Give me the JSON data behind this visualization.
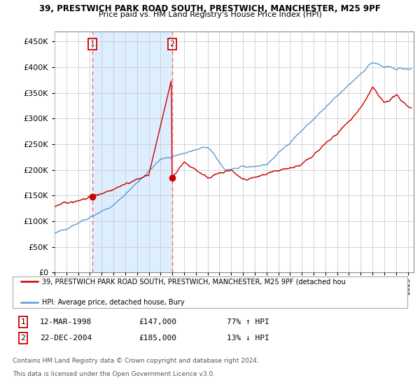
{
  "title1": "39, PRESTWICH PARK ROAD SOUTH, PRESTWICH, MANCHESTER, M25 9PF",
  "title2": "Price paid vs. HM Land Registry's House Price Index (HPI)",
  "ylim": [
    0,
    470000
  ],
  "yticks": [
    0,
    50000,
    100000,
    150000,
    200000,
    250000,
    300000,
    350000,
    400000,
    450000
  ],
  "sale1_year": 1998.19,
  "sale1_price": 147000,
  "sale2_year": 2004.97,
  "sale2_price": 185000,
  "legend_line1": "39, PRESTWICH PARK ROAD SOUTH, PRESTWICH, MANCHESTER, M25 9PF (detached hou",
  "legend_line2": "HPI: Average price, detached house, Bury",
  "footer1": "Contains HM Land Registry data © Crown copyright and database right 2024.",
  "footer2": "This data is licensed under the Open Government Licence v3.0.",
  "table_row1": [
    "1",
    "12-MAR-1998",
    "£147,000",
    "77% ↑ HPI"
  ],
  "table_row2": [
    "2",
    "22-DEC-2004",
    "£185,000",
    "13% ↓ HPI"
  ],
  "hpi_color": "#5B9BD5",
  "price_color": "#CC0000",
  "vline_color": "#FF6666",
  "shade_color": "#DDEEFF",
  "background_color": "#FFFFFF",
  "grid_color": "#CCCCCC",
  "xlim_start": 1995,
  "xlim_end": 2025.5
}
